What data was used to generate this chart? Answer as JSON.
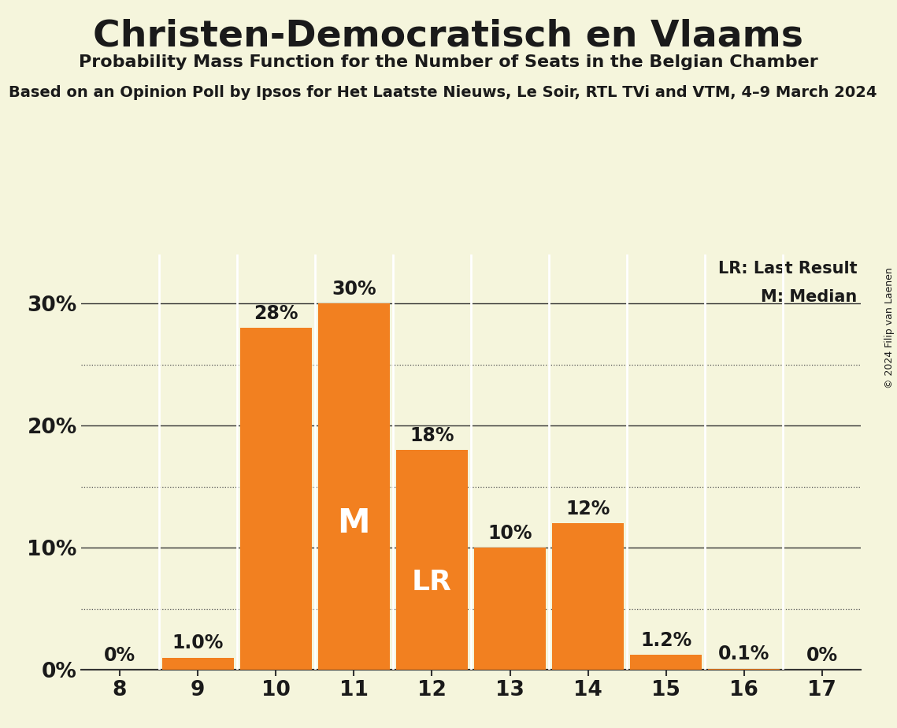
{
  "title": "Christen-Democratisch en Vlaams",
  "subtitle": "Probability Mass Function for the Number of Seats in the Belgian Chamber",
  "source_line": "Based on an Opinion Poll by Ipsos for Het Laatste Nieuws, Le Soir, RTL TVi and VTM, 4–9 March 2024",
  "copyright": "© 2024 Filip van Laenen",
  "seats": [
    8,
    9,
    10,
    11,
    12,
    13,
    14,
    15,
    16,
    17
  ],
  "probabilities": [
    0.0,
    1.0,
    28.0,
    30.0,
    18.0,
    10.0,
    12.0,
    1.2,
    0.1,
    0.0
  ],
  "bar_color": "#F28020",
  "background_color": "#F5F5DC",
  "text_color": "#1A1A1A",
  "median_seat": 11,
  "lr_seat": 12,
  "legend_lr": "LR: Last Result",
  "legend_m": "M: Median",
  "solid_yticks": [
    0,
    10,
    20,
    30
  ],
  "dotted_yticks": [
    5,
    15,
    25
  ],
  "label_map": {
    "0.0_8": "0%",
    "1.0_9": "1.0%",
    "28.0_10": "28%",
    "30.0_11": "30%",
    "18.0_12": "18%",
    "10.0_13": "10%",
    "12.0_14": "12%",
    "1.2_15": "1.2%",
    "0.1_16": "0.1%",
    "0.0_17": "0%"
  }
}
